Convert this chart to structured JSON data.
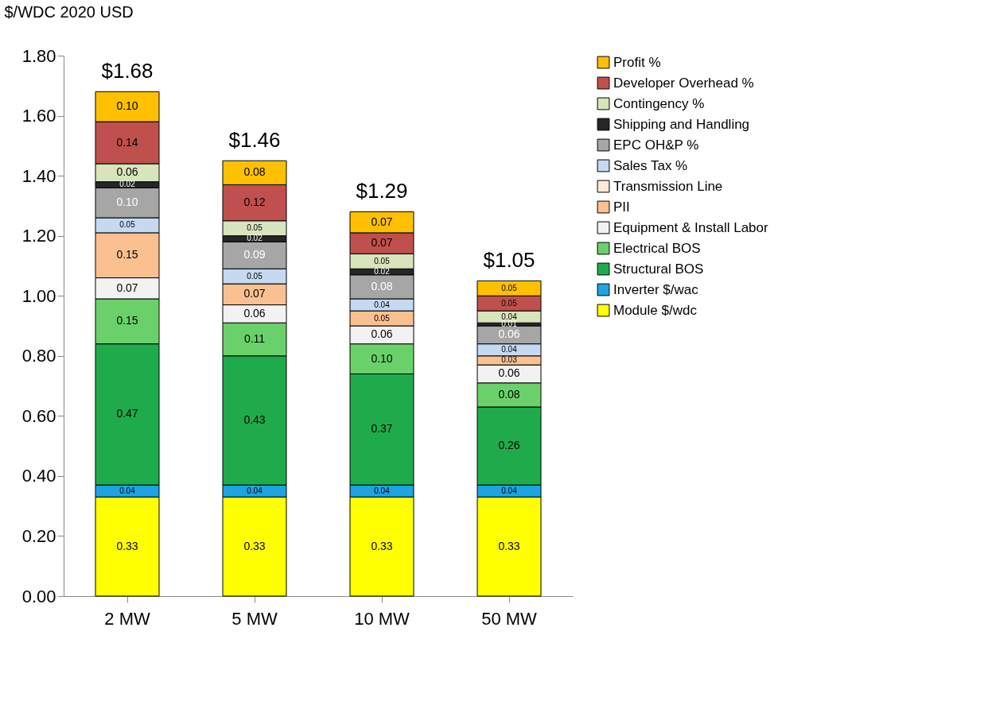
{
  "chart_data": {
    "type": "bar",
    "stacked": true,
    "ylabel": "$/WDC 2020 USD",
    "categories": [
      "2 MW",
      "5 MW",
      "10 MW",
      "50 MW"
    ],
    "ylim": [
      0,
      1.8
    ],
    "yticks": [
      {
        "value": 0,
        "label": "0.00"
      },
      {
        "value": 0.2,
        "label": "0.20"
      },
      {
        "value": 0.4,
        "label": "0.40"
      },
      {
        "value": 0.6,
        "label": "0.60"
      },
      {
        "value": 0.8,
        "label": "0.80"
      },
      {
        "value": 1.0,
        "label": "1.00"
      },
      {
        "value": 1.2,
        "label": "1.20"
      },
      {
        "value": 1.4,
        "label": "1.40"
      },
      {
        "value": 1.6,
        "label": "1.60"
      },
      {
        "value": 1.8,
        "label": "1.80"
      }
    ],
    "grid": false,
    "legend": "right",
    "totals": [
      "$1.68",
      "$1.46",
      "$1.29",
      "$1.05"
    ],
    "series": [
      {
        "name": "Module $/wdc",
        "color": "#ffff00",
        "values": [
          0.33,
          0.33,
          0.33,
          0.33
        ],
        "value_labels": [
          "0.33",
          "0.33",
          "0.33",
          "0.33"
        ]
      },
      {
        "name": "Inverter $/wac",
        "color": "#1ea4e0",
        "values": [
          0.04,
          0.04,
          0.04,
          0.04
        ],
        "value_labels": [
          "0.04",
          "0.04",
          "0.04",
          "0.04"
        ]
      },
      {
        "name": "Structural BOS",
        "color": "#1fab4b",
        "values": [
          0.47,
          0.43,
          0.37,
          0.26
        ],
        "value_labels": [
          "0.47",
          "0.43",
          "0.37",
          "0.26"
        ]
      },
      {
        "name": "Electrical BOS",
        "color": "#6ad16a",
        "values": [
          0.15,
          0.11,
          0.1,
          0.08
        ],
        "value_labels": [
          "0.15",
          "0.11",
          "0.10",
          "0.08"
        ]
      },
      {
        "name": "Equipment & Install Labor",
        "color": "#f2f2f2",
        "values": [
          0.07,
          0.06,
          0.06,
          0.06
        ],
        "value_labels": [
          "0.07",
          "0.06",
          "0.06",
          "0.06"
        ]
      },
      {
        "name": "PII",
        "color": "#fac090",
        "values": [
          0.15,
          0.07,
          0.05,
          0.03
        ],
        "value_labels": [
          "0.15",
          "0.07",
          "0.05",
          "0.03"
        ]
      },
      {
        "name": "Transmission Line",
        "color": "#fdeada",
        "values": [
          null,
          null,
          null,
          null
        ],
        "value_labels": [
          null,
          null,
          null,
          null
        ]
      },
      {
        "name": "Sales Tax %",
        "color": "#c5d9f1",
        "values": [
          0.05,
          0.05,
          0.04,
          0.04
        ],
        "value_labels": [
          "0.05",
          "0.05",
          "0.04",
          "0.04"
        ]
      },
      {
        "name": "EPC OH&P %",
        "color": "#a6a6a6",
        "values": [
          0.1,
          0.09,
          0.08,
          0.06
        ],
        "value_labels": [
          "0.10",
          "0.09",
          "0.08",
          "0.06"
        ]
      },
      {
        "name": "Shipping and Handling",
        "color": "#262626",
        "values": [
          0.02,
          0.02,
          0.02,
          0.01
        ],
        "value_labels": [
          "0.02",
          "0.02",
          "0.02",
          "0.01"
        ]
      },
      {
        "name": "Contingency %",
        "color": "#d8e4bc",
        "values": [
          0.06,
          0.05,
          0.05,
          0.04
        ],
        "value_labels": [
          "0.06",
          "0.05",
          "0.05",
          "0.04"
        ]
      },
      {
        "name": "Developer Overhead %",
        "color": "#c0504d",
        "values": [
          0.14,
          0.12,
          0.07,
          0.05
        ],
        "value_labels": [
          "0.14",
          "0.12",
          "0.07",
          "0.05"
        ]
      },
      {
        "name": "Profit %",
        "color": "#ffc000",
        "values": [
          0.1,
          0.08,
          0.07,
          0.05
        ],
        "value_labels": [
          "0.10",
          "0.08",
          "0.07",
          "0.05"
        ]
      }
    ]
  }
}
